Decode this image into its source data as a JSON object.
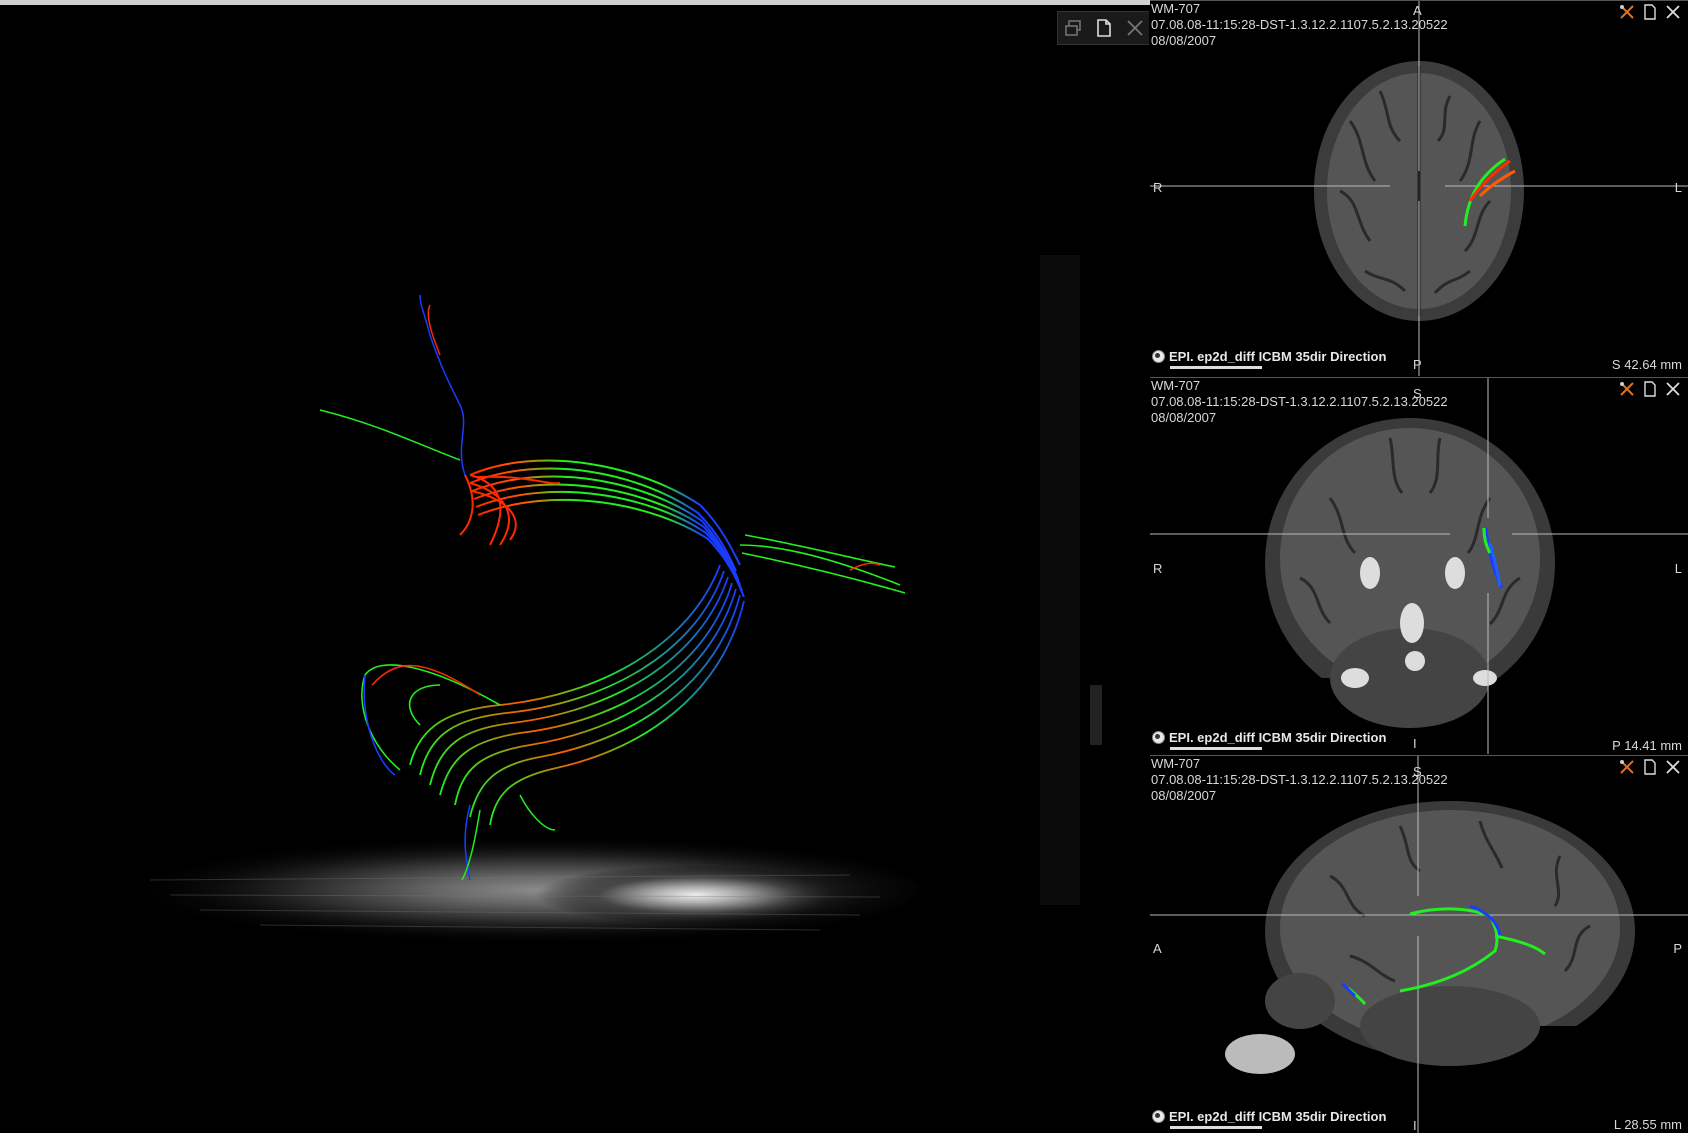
{
  "main_view": {
    "toolbar": {
      "layout_icon": "layout-icon",
      "page_icon": "page-icon",
      "close_icon": "close-icon"
    }
  },
  "viewports": [
    {
      "patient": "WM-707",
      "study": "07.08.08-11:15:28-DST-1.3.12.2.1107.5.2.13.20522",
      "date": "08/08/2007",
      "top": "A",
      "bottom": "P",
      "left": "R",
      "right": "L",
      "series": "EPI. ep2d_diff ICBM 35dir Direction",
      "position": "S 42.64 mm"
    },
    {
      "patient": "WM-707",
      "study": "07.08.08-11:15:28-DST-1.3.12.2.1107.5.2.13.20522",
      "date": "08/08/2007",
      "top": "S",
      "bottom": "I",
      "left": "R",
      "right": "L",
      "series": "EPI. ep2d_diff ICBM 35dir Direction",
      "position": "P 14.41 mm"
    },
    {
      "patient": "WM-707",
      "study": "07.08.08-11:15:28-DST-1.3.12.2.1107.5.2.13.20522",
      "date": "08/08/2007",
      "top": "S",
      "bottom": "I",
      "left": "A",
      "right": "P",
      "series": "EPI. ep2d_diff ICBM 35dir Direction",
      "position": "L 28.55 mm"
    }
  ],
  "colors": {
    "fiber_red": "#ff2a00",
    "fiber_green": "#22ee22",
    "fiber_blue": "#1a3cff"
  }
}
